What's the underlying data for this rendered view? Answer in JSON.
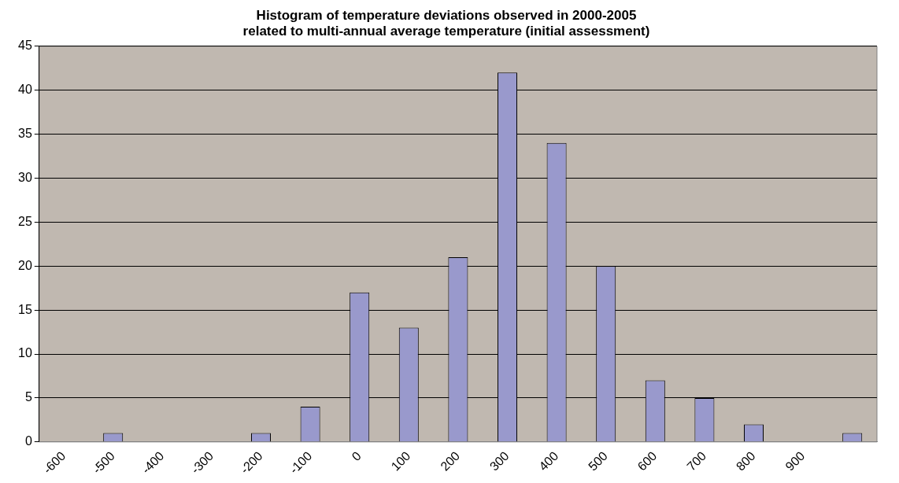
{
  "chart_data": {
    "type": "bar",
    "title": [
      "Histogram of temperature deviations observed in 2000-2005",
      "related to multi-annual average temperature (initial assessment)"
    ],
    "categories": [
      "-600",
      "-500",
      "-400",
      "-300",
      "-200",
      "-100",
      "0",
      "100",
      "200",
      "300",
      "400",
      "500",
      "600",
      "700",
      "800",
      "900",
      null
    ],
    "values": [
      0,
      1,
      0,
      0,
      1,
      4,
      17,
      13,
      21,
      42,
      34,
      20,
      7,
      5,
      2,
      0,
      1
    ],
    "color": "#9999cc",
    "ylim": [
      0,
      45
    ],
    "yticks": [
      0,
      5,
      10,
      15,
      20,
      25,
      30,
      35,
      40,
      45
    ],
    "grid": "y"
  }
}
